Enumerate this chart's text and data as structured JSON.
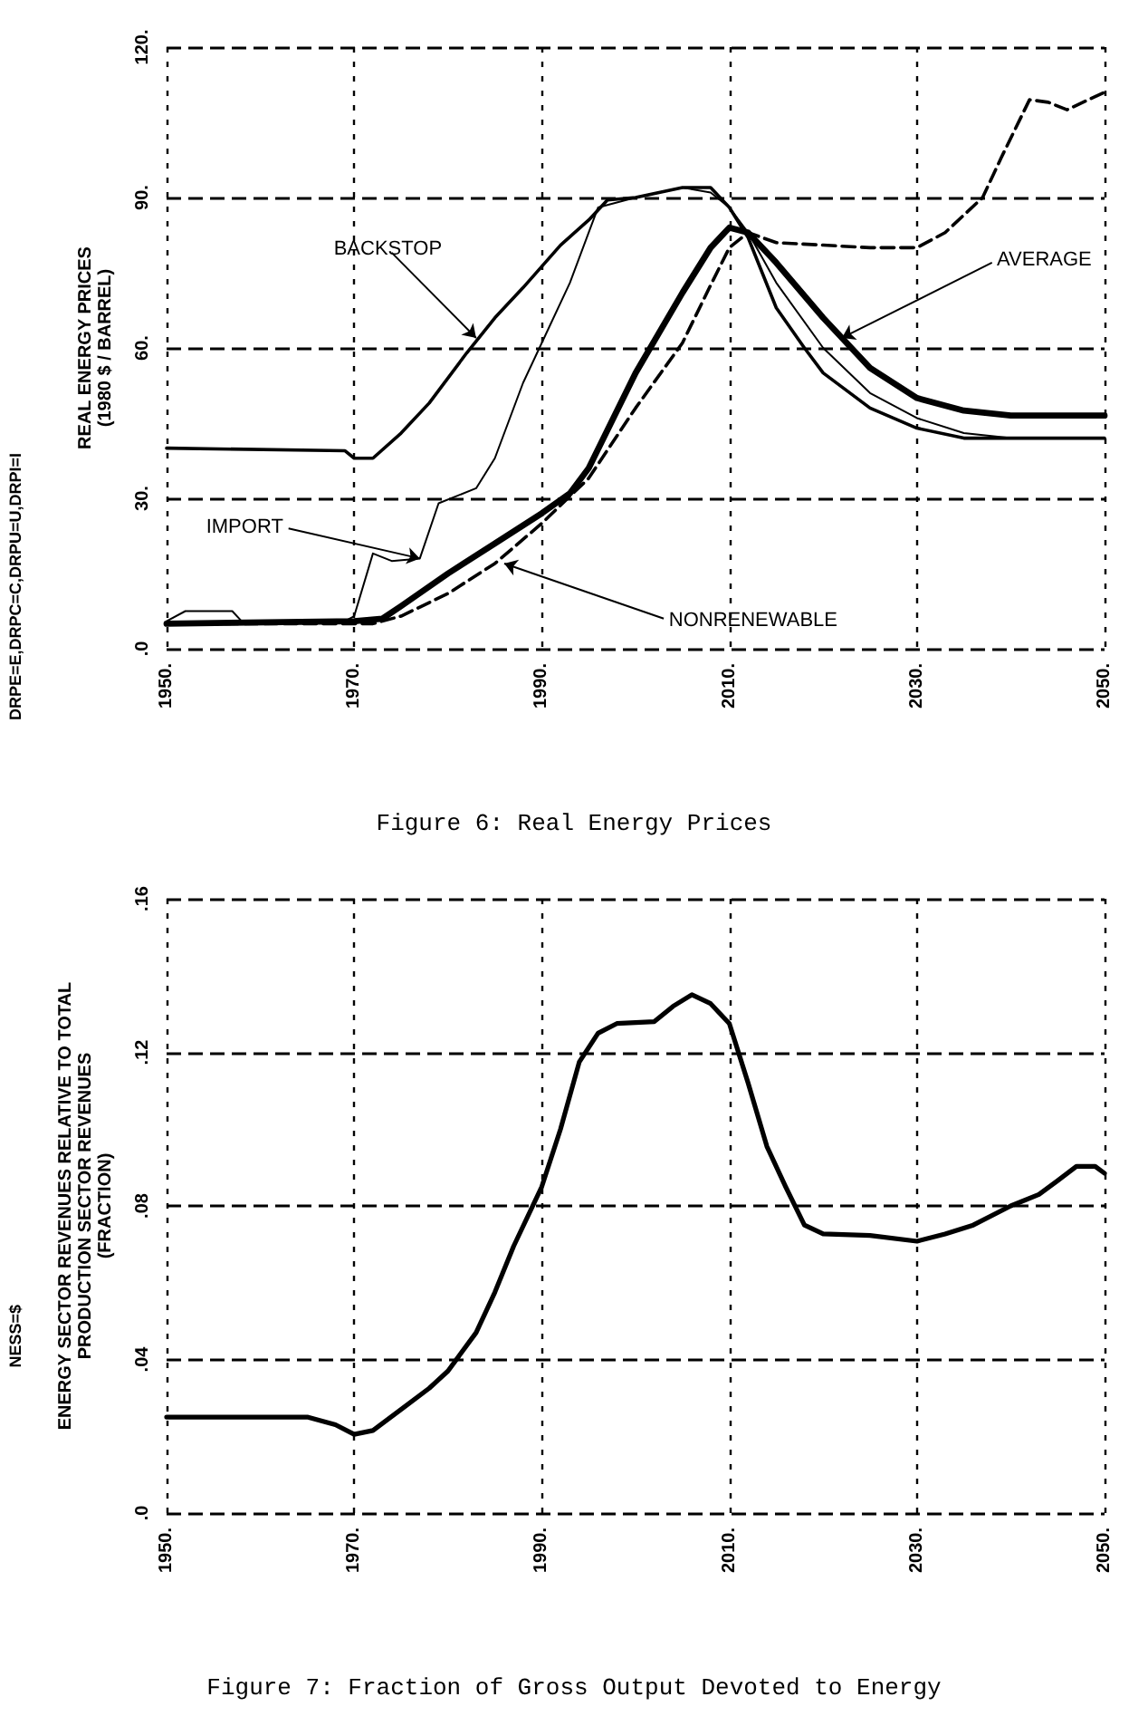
{
  "chart_data": [
    {
      "type": "line",
      "title": "Figure 6: Real Energy Prices",
      "ylabel": "REAL ENERGY PRICES\n(1980 $ / BARREL)",
      "xlim": [
        1950,
        2050
      ],
      "ylim": [
        0,
        120
      ],
      "xticks": [
        {
          "value": 1950,
          "label": "1950."
        },
        {
          "value": 1970,
          "label": "1970."
        },
        {
          "value": 1990,
          "label": "1990."
        },
        {
          "value": 2010,
          "label": "2010."
        },
        {
          "value": 2030,
          "label": "2030."
        },
        {
          "value": 2050,
          "label": "2050."
        }
      ],
      "yticks": [
        {
          "value": 0,
          "label": ".0"
        },
        {
          "value": 30,
          "label": "30."
        },
        {
          "value": 60,
          "label": "60."
        },
        {
          "value": 90,
          "label": "90."
        },
        {
          "value": 120,
          "label": "120."
        }
      ],
      "grid": true,
      "marker": "none",
      "line_style": "solid",
      "series": [
        {
          "color": "#000000",
          "x": [
            1950,
            1969,
            1970,
            1972,
            1975,
            1978,
            1982,
            1985,
            1988,
            1992,
            1995,
            1997,
            2000,
            2005,
            2008,
            2010,
            2012,
            2015,
            2018,
            2020,
            2025,
            2030,
            2035,
            2040,
            2050
          ],
          "values": [
            40,
            39.5,
            38,
            38,
            43,
            49,
            59,
            66,
            72,
            80.5,
            85.5,
            89.5,
            90,
            92,
            92,
            88,
            82,
            68,
            60,
            55,
            48,
            44,
            42,
            42,
            42
          ]
        },
        {
          "color": "#000000",
          "x": [
            1950,
            1952,
            1957,
            1958,
            1969,
            1970,
            1972,
            1974,
            1977,
            1979,
            1983,
            1985,
            1988,
            1990,
            1993,
            1996,
            2000,
            2005,
            2008,
            2010,
            2012,
            2015,
            2020,
            2025,
            2030,
            2035,
            2040,
            2050
          ],
          "values": [
            5.5,
            7.5,
            7.5,
            5.5,
            5.5,
            6.5,
            19,
            17.5,
            18,
            29,
            32,
            38,
            53,
            61,
            73,
            88,
            90,
            92,
            91,
            88,
            83,
            73,
            60,
            51,
            46,
            43,
            42,
            42
          ]
        },
        {
          "color": "#000000",
          "x": [
            1950,
            1970,
            1973,
            1975,
            1980,
            1985,
            1990,
            1993,
            1995,
            2000,
            2005,
            2008,
            2010,
            2012,
            2015,
            2020,
            2025,
            2030,
            2035,
            2040,
            2050
          ],
          "values": [
            5,
            5.5,
            6,
            8.5,
            15,
            21,
            27,
            31,
            36,
            55,
            71,
            80,
            84,
            83,
            77,
            66,
            56,
            50,
            47.5,
            46.5,
            46.5
          ]
        },
        {
          "color": "#000000",
          "line_style": "dashed",
          "x": [
            1950,
            1972,
            1975,
            1980,
            1985,
            1990,
            1995,
            2000,
            2005,
            2008,
            2010,
            2012,
            2015,
            2020,
            2025,
            2030,
            2033,
            2037,
            2039,
            2042,
            2044,
            2046,
            2050
          ],
          "values": [
            5,
            5,
            6.5,
            11,
            17,
            25,
            34,
            48,
            61,
            72.5,
            80,
            83,
            81,
            80.5,
            80,
            80,
            83,
            90,
            98,
            109.5,
            109,
            107.5,
            111
          ]
        }
      ],
      "annotations": [
        {
          "text": "BACKSTOP",
          "x": 1983,
          "y": 62
        },
        {
          "text": "IMPORT",
          "x": 1977,
          "y": 18
        },
        {
          "text": "NONRENEWABLE",
          "x": 1986,
          "y": 17
        },
        {
          "text": "AVERAGE",
          "x": 2022,
          "y": 62
        },
        "DRPE=E,DRPC=C,DRPU=U,DRPI=I"
      ]
    },
    {
      "type": "line",
      "title": "Figure 7: Fraction of Gross Output Devoted to Energy",
      "ylabel": "ENERGY SECTOR REVENUES RELATIVE TO TOTAL\nPRODUCTION SECTOR REVENUES\n(FRACTION)",
      "xlim": [
        1950,
        2050
      ],
      "ylim": [
        0,
        0.16
      ],
      "xticks": [
        {
          "value": 1950,
          "label": "1950."
        },
        {
          "value": 1970,
          "label": "1970."
        },
        {
          "value": 1990,
          "label": "1990."
        },
        {
          "value": 2010,
          "label": "2010."
        },
        {
          "value": 2030,
          "label": "2030."
        },
        {
          "value": 2050,
          "label": "2050."
        }
      ],
      "yticks": [
        {
          "value": 0,
          "label": ".0"
        },
        {
          "value": 0.04,
          "label": ".04"
        },
        {
          "value": 0.08,
          "label": ".08"
        },
        {
          "value": 0.12,
          "label": ".12"
        },
        {
          "value": 0.16,
          "label": ".16"
        }
      ],
      "grid": true,
      "marker": "none",
      "line_style": "solid",
      "series": [
        {
          "color": "#000000",
          "x": [
            1950,
            1965,
            1968,
            1970,
            1972,
            1975,
            1978,
            1980,
            1983,
            1985,
            1987,
            1990,
            1992,
            1994,
            1996,
            1998,
            2002,
            2004,
            2006,
            2008,
            2010,
            2012,
            2014,
            2016,
            2018,
            2020,
            2025,
            2030,
            2033,
            2036,
            2040,
            2043,
            2045,
            2047,
            2049,
            2050
          ],
          "values": [
            0.025,
            0.025,
            0.023,
            0.0205,
            0.0215,
            0.027,
            0.0325,
            0.037,
            0.047,
            0.0575,
            0.0695,
            0.085,
            0.1,
            0.1175,
            0.125,
            0.1275,
            0.128,
            0.132,
            0.135,
            0.1327,
            0.1275,
            0.112,
            0.0955,
            0.085,
            0.075,
            0.0727,
            0.0723,
            0.0708,
            0.0727,
            0.075,
            0.08,
            0.083,
            0.0866,
            0.0903,
            0.0903,
            0.0885
          ]
        }
      ],
      "annotations": [
        "NESS=$"
      ]
    }
  ]
}
